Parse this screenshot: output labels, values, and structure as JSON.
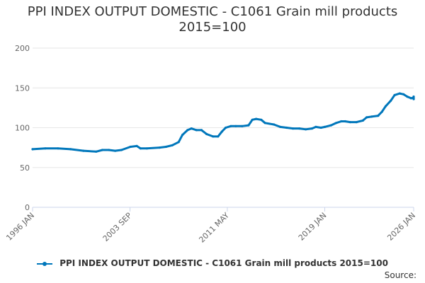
{
  "chart_data": {
    "type": "line",
    "title_line1": "PPI INDEX OUTPUT DOMESTIC - C1061 Grain mill products",
    "title_line2": "2015=100",
    "xlabel": "",
    "ylabel": "",
    "ylim": [
      0,
      200
    ],
    "yticks": [
      0,
      50,
      100,
      150,
      200
    ],
    "xlim": [
      1996.0,
      2026.0
    ],
    "xticks": [
      {
        "label": "1996 JAN",
        "value": 1996.0
      },
      {
        "label": "2003 SEP",
        "value": 2003.67
      },
      {
        "label": "2011 MAY",
        "value": 2011.33
      },
      {
        "label": "2019 JAN",
        "value": 2019.0
      },
      {
        "label": "2026 JAN",
        "value": 2026.0
      }
    ],
    "grid": true,
    "legend_position": "bottom",
    "series": [
      {
        "name": "PPI INDEX OUTPUT DOMESTIC - C1061 Grain mill products 2015=100",
        "color": "#0077bb",
        "points": [
          [
            1996.0,
            73
          ],
          [
            1997.0,
            74
          ],
          [
            1998.0,
            74
          ],
          [
            1999.0,
            73
          ],
          [
            2000.0,
            71
          ],
          [
            2001.0,
            70
          ],
          [
            2001.5,
            72
          ],
          [
            2002.0,
            72
          ],
          [
            2002.5,
            71
          ],
          [
            2003.0,
            72
          ],
          [
            2003.7,
            76
          ],
          [
            2004.2,
            77
          ],
          [
            2004.5,
            74
          ],
          [
            2005.0,
            74
          ],
          [
            2006.0,
            75
          ],
          [
            2006.5,
            76
          ],
          [
            2007.0,
            78
          ],
          [
            2007.5,
            82
          ],
          [
            2007.8,
            91
          ],
          [
            2008.2,
            97
          ],
          [
            2008.5,
            99
          ],
          [
            2008.9,
            97
          ],
          [
            2009.3,
            97
          ],
          [
            2009.7,
            92
          ],
          [
            2010.2,
            89
          ],
          [
            2010.6,
            89
          ],
          [
            2010.9,
            95
          ],
          [
            2011.2,
            100
          ],
          [
            2011.6,
            102
          ],
          [
            2012.0,
            102
          ],
          [
            2012.5,
            102
          ],
          [
            2013.0,
            103
          ],
          [
            2013.3,
            110
          ],
          [
            2013.6,
            111
          ],
          [
            2014.0,
            110
          ],
          [
            2014.3,
            106
          ],
          [
            2015.0,
            104
          ],
          [
            2015.5,
            101
          ],
          [
            2016.0,
            100
          ],
          [
            2016.5,
            99
          ],
          [
            2017.0,
            99
          ],
          [
            2017.5,
            98
          ],
          [
            2018.0,
            99
          ],
          [
            2018.3,
            101
          ],
          [
            2018.7,
            100
          ],
          [
            2019.0,
            101
          ],
          [
            2019.5,
            103
          ],
          [
            2019.9,
            106
          ],
          [
            2020.3,
            108
          ],
          [
            2020.6,
            108
          ],
          [
            2021.0,
            107
          ],
          [
            2021.5,
            107
          ],
          [
            2022.0,
            109
          ],
          [
            2022.3,
            113
          ],
          [
            2022.7,
            114
          ],
          [
            2023.2,
            115
          ],
          [
            2023.5,
            120
          ],
          [
            2023.8,
            127
          ],
          [
            2024.2,
            134
          ],
          [
            2024.5,
            141
          ],
          [
            2024.9,
            143
          ],
          [
            2025.2,
            142
          ],
          [
            2025.5,
            139
          ],
          [
            2025.8,
            137
          ],
          [
            2026.3,
            138
          ],
          [
            2026.7,
            139
          ],
          [
            2027.2,
            137
          ],
          [
            2027.6,
            136
          ],
          [
            2027.9,
            136
          ]
        ]
      }
    ]
  },
  "legend": {
    "label": "PPI INDEX OUTPUT DOMESTIC - C1061 Grain mill products 2015=100"
  },
  "footer": {
    "source": "Source:"
  }
}
